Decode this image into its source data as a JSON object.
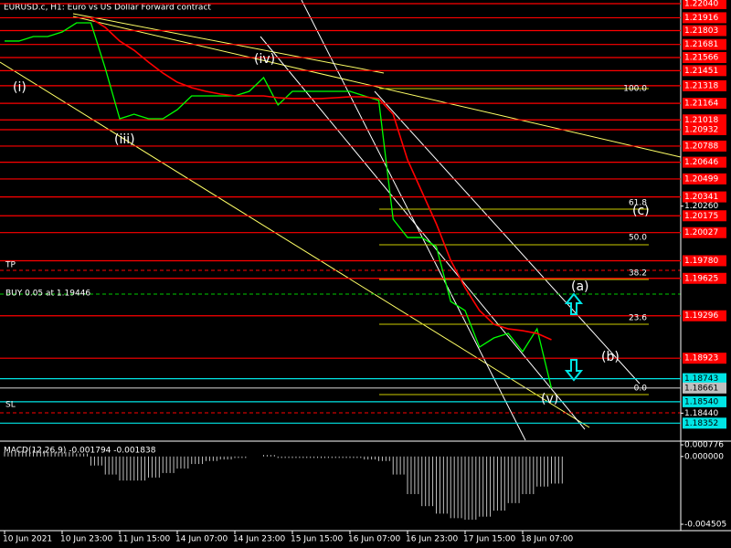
{
  "chart_data": [
    {
      "type": "line",
      "title": "EURUSD.c, H1: Euro vs US Dollar Forward contract",
      "categories": [
        "10 Jun 2021",
        null,
        null,
        null,
        "10 Jun 23:00",
        null,
        null,
        null,
        "11 Jun 15:00",
        null,
        null,
        null,
        "14 Jun 07:00",
        null,
        null,
        null,
        "14 Jun 23:00",
        null,
        null,
        null,
        "15 Jun 15:00",
        null,
        null,
        null,
        "16 Jun 07:00",
        null,
        null,
        null,
        "16 Jun 23:00",
        null,
        null,
        null,
        "17 Jun 15:00",
        null,
        null,
        null,
        "18 Jun 07:00",
        null,
        null
      ],
      "series": [
        {
          "color": "#00ff00",
          "values": [
            1.21711,
            1.21711,
            1.21751,
            1.21751,
            1.21791,
            1.21871,
            1.21871,
            1.2147,
            1.21028,
            1.21068,
            1.21028,
            1.21028,
            1.21108,
            1.21229,
            1.21229,
            1.21229,
            1.21229,
            1.21269,
            1.2139,
            1.21149,
            1.21269,
            1.21269,
            1.21269,
            1.21269,
            1.21269,
            1.21229,
            1.21189,
            1.20145,
            1.19984,
            1.19984,
            1.19904,
            1.19422,
            1.19342,
            1.19021,
            1.19101,
            1.19141,
            1.18981,
            1.19181,
            1.18659
          ]
        },
        {
          "color": "#ff0000",
          "values": [
            null,
            null,
            null,
            null,
            null,
            null,
            1.21911,
            1.21831,
            1.21711,
            1.2163,
            1.21526,
            1.2143,
            1.21349,
            1.21301,
            1.21269,
            1.21245,
            1.21229,
            1.21229,
            1.21229,
            1.21213,
            1.21205,
            1.21205,
            1.21205,
            1.21213,
            1.21221,
            1.21221,
            1.21205,
            1.21068,
            1.20667,
            1.20386,
            1.20105,
            1.19783,
            1.19543,
            1.19342,
            1.19221,
            1.19181,
            1.19165,
            1.19141,
            1.19085
          ]
        }
      ],
      "ylim": [
        1.18202,
        1.22072
      ],
      "yticks": [
        {
          "value": 1.2026,
          "label": "1.20260"
        },
        {
          "value": 1.1844,
          "label": "1.18440"
        }
      ],
      "price_levels": [
        {
          "value": 1.2204,
          "label": "1.22040",
          "color": "#ff0000"
        },
        {
          "value": 1.21916,
          "label": "1.21916",
          "color": "#ff0000"
        },
        {
          "value": 1.21803,
          "label": "1.21803",
          "color": "#ff0000"
        },
        {
          "value": 1.21681,
          "label": "1.21681",
          "color": "#ff0000"
        },
        {
          "value": 1.21566,
          "label": "1.21566",
          "color": "#ff0000"
        },
        {
          "value": 1.21451,
          "label": "1.21451",
          "color": "#ff0000"
        },
        {
          "value": 1.21318,
          "label": "1.21318",
          "color": "#ff0000"
        },
        {
          "value": 1.21164,
          "label": "1.21164",
          "color": "#ff0000"
        },
        {
          "value": 1.21018,
          "label": "1.21018",
          "color": "#ff0000"
        },
        {
          "value": 1.20932,
          "label": "1.20932",
          "color": "#ff0000"
        },
        {
          "value": 1.20788,
          "label": "1.20788",
          "color": "#ff0000"
        },
        {
          "value": 1.20646,
          "label": "1.20646",
          "color": "#ff0000"
        },
        {
          "value": 1.20499,
          "label": "1.20499",
          "color": "#ff0000"
        },
        {
          "value": 1.20341,
          "label": "1.20341",
          "color": "#ff0000"
        },
        {
          "value": 1.20175,
          "label": "1.20175",
          "color": "#ff0000"
        },
        {
          "value": 1.20027,
          "label": "1.20027",
          "color": "#ff0000"
        },
        {
          "value": 1.1978,
          "label": "1.19780",
          "color": "#ff0000"
        },
        {
          "value": 1.19625,
          "label": "1.19625",
          "color": "#ff0000"
        },
        {
          "value": 1.19296,
          "label": "1.19296",
          "color": "#ff0000"
        },
        {
          "value": 1.18923,
          "label": "1.18923",
          "color": "#ff0000"
        },
        {
          "value": 1.18743,
          "label": "1.18743",
          "color": "#00e5e5"
        },
        {
          "value": 1.18661,
          "label": "1.18661",
          "color": "#c0c0c0"
        },
        {
          "value": 1.1854,
          "label": "1.18540",
          "color": "#00e5e5"
        },
        {
          "value": 1.18352,
          "label": "1.18352",
          "color": "#00e5e5"
        }
      ],
      "fib_labels": [
        "100.0",
        "61.8",
        "50.0",
        "38.2",
        "23.6",
        "0.0"
      ],
      "wave_labels": [
        "(i)",
        "(iii)",
        "(iv)",
        "(v)",
        "(a)",
        "(b)",
        "(c)"
      ],
      "trade_labels": [
        "TP",
        "BUY 0.05 at 1.19446",
        "SL"
      ]
    },
    {
      "type": "bar",
      "title": "MACD(12,26,9) -0.001794 -0.001838",
      "color": "#c0c0c0",
      "values": [
        0.0003,
        0.0004,
        0.0004,
        0.0003,
        0.0003,
        0.0002,
        -0.0006,
        -0.0012,
        -0.0016,
        -0.0016,
        -0.0014,
        -0.0011,
        -0.0008,
        -0.0005,
        -0.0003,
        -0.0002,
        -0.0001,
        0,
        0.0001,
        -0.0001,
        -0.0001,
        -0.0001,
        -0.0001,
        -0.0001,
        -0.0001,
        -0.0002,
        -0.0003,
        -0.0012,
        -0.0025,
        -0.0033,
        -0.0038,
        -0.0041,
        -0.0042,
        -0.004,
        -0.0036,
        -0.0031,
        -0.0025,
        -0.002,
        -0.0018
      ],
      "ylim": [
        -0.00493,
        0.00096
      ],
      "yticks": [
        {
          "value": 0.000776,
          "label": "0.000776"
        },
        {
          "value": 0,
          "label": "0.000000"
        },
        {
          "value": -0.004505,
          "label": "-0.004505"
        }
      ]
    }
  ]
}
